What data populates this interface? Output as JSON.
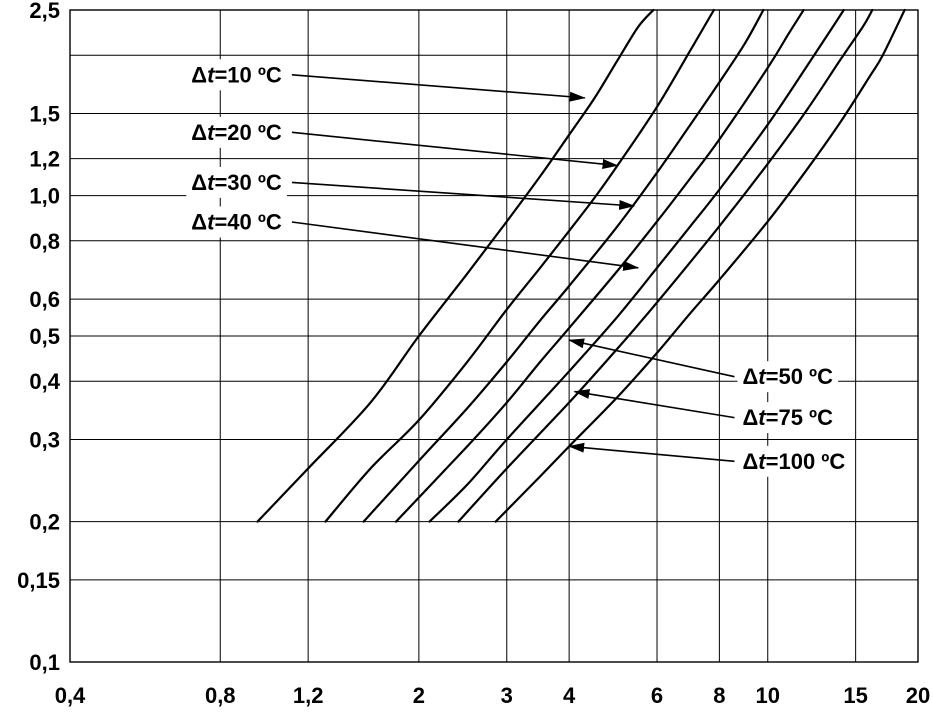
{
  "chart_data": {
    "type": "line",
    "title": "",
    "xlabel": "",
    "ylabel": "",
    "x_scale": "log",
    "y_scale": "log",
    "xlim": [
      0.4,
      20
    ],
    "ylim": [
      0.1,
      2.5
    ],
    "grid": true,
    "legend": "none",
    "x_ticks": [
      {
        "value": 0.4,
        "label": "0,4"
      },
      {
        "value": 0.8,
        "label": "0,8"
      },
      {
        "value": 1.2,
        "label": "1,2"
      },
      {
        "value": 2,
        "label": "2"
      },
      {
        "value": 3,
        "label": "3"
      },
      {
        "value": 4,
        "label": "4"
      },
      {
        "value": 6,
        "label": "6"
      },
      {
        "value": 8,
        "label": "8"
      },
      {
        "value": 10,
        "label": "10"
      },
      {
        "value": 15,
        "label": "15"
      },
      {
        "value": 20,
        "label": "20"
      }
    ],
    "y_ticks": [
      {
        "value": 0.1,
        "label": "0,1"
      },
      {
        "value": 0.15,
        "label": "0,15"
      },
      {
        "value": 0.2,
        "label": "0,2"
      },
      {
        "value": 0.3,
        "label": "0,3"
      },
      {
        "value": 0.4,
        "label": "0,4"
      },
      {
        "value": 0.5,
        "label": "0,5"
      },
      {
        "value": 0.6,
        "label": "0,6"
      },
      {
        "value": 0.8,
        "label": "0,8"
      },
      {
        "value": 1.0,
        "label": "1,0"
      },
      {
        "value": 1.2,
        "label": "1,2"
      },
      {
        "value": 1.5,
        "label": "1,5"
      },
      {
        "value": 2.0,
        "label": ""
      },
      {
        "value": 2.5,
        "label": "2,5"
      }
    ],
    "series": [
      {
        "points": [
          [
            0.95,
            0.2
          ],
          [
            1.2,
            0.26
          ],
          [
            1.6,
            0.36
          ],
          [
            2.0,
            0.5
          ],
          [
            2.5,
            0.68
          ],
          [
            3.0,
            0.88
          ],
          [
            3.5,
            1.1
          ],
          [
            4.0,
            1.35
          ],
          [
            4.5,
            1.62
          ],
          [
            5.0,
            1.95
          ],
          [
            5.5,
            2.3
          ],
          [
            5.9,
            2.5
          ]
        ]
      },
      {
        "points": [
          [
            1.3,
            0.2
          ],
          [
            1.6,
            0.26
          ],
          [
            2.0,
            0.33
          ],
          [
            2.5,
            0.44
          ],
          [
            3.0,
            0.57
          ],
          [
            3.5,
            0.7
          ],
          [
            4.0,
            0.84
          ],
          [
            4.5,
            0.99
          ],
          [
            5.0,
            1.16
          ],
          [
            6.0,
            1.55
          ],
          [
            7.0,
            2.05
          ],
          [
            7.8,
            2.5
          ]
        ]
      },
      {
        "points": [
          [
            1.55,
            0.2
          ],
          [
            2.0,
            0.27
          ],
          [
            2.5,
            0.35
          ],
          [
            3.0,
            0.44
          ],
          [
            3.5,
            0.54
          ],
          [
            4.0,
            0.64
          ],
          [
            5.0,
            0.86
          ],
          [
            6.0,
            1.12
          ],
          [
            7.0,
            1.42
          ],
          [
            8.0,
            1.75
          ],
          [
            9.0,
            2.12
          ],
          [
            9.8,
            2.5
          ]
        ]
      },
      {
        "points": [
          [
            1.8,
            0.2
          ],
          [
            2.5,
            0.29
          ],
          [
            3.0,
            0.36
          ],
          [
            3.5,
            0.44
          ],
          [
            4.0,
            0.52
          ],
          [
            5.0,
            0.69
          ],
          [
            6.0,
            0.88
          ],
          [
            7.0,
            1.09
          ],
          [
            8.0,
            1.32
          ],
          [
            10.0,
            1.88
          ],
          [
            11.0,
            2.22
          ],
          [
            11.8,
            2.5
          ]
        ]
      },
      {
        "points": [
          [
            2.1,
            0.2
          ],
          [
            2.5,
            0.24
          ],
          [
            3.0,
            0.3
          ],
          [
            4.0,
            0.42
          ],
          [
            5.0,
            0.55
          ],
          [
            6.0,
            0.7
          ],
          [
            7.0,
            0.86
          ],
          [
            8.0,
            1.03
          ],
          [
            10.0,
            1.42
          ],
          [
            12.0,
            1.9
          ],
          [
            13.5,
            2.3
          ],
          [
            14.2,
            2.5
          ]
        ]
      },
      {
        "points": [
          [
            2.4,
            0.2
          ],
          [
            3.0,
            0.26
          ],
          [
            4.0,
            0.36
          ],
          [
            5.0,
            0.47
          ],
          [
            6.0,
            0.59
          ],
          [
            8.0,
            0.86
          ],
          [
            10.0,
            1.17
          ],
          [
            12.0,
            1.53
          ],
          [
            14.0,
            1.96
          ],
          [
            15.5,
            2.3
          ],
          [
            16.2,
            2.5
          ]
        ]
      },
      {
        "points": [
          [
            2.85,
            0.2
          ],
          [
            3.5,
            0.25
          ],
          [
            4.0,
            0.29
          ],
          [
            5.0,
            0.37
          ],
          [
            6.0,
            0.46
          ],
          [
            7.0,
            0.56
          ],
          [
            8.0,
            0.66
          ],
          [
            10.0,
            0.88
          ],
          [
            12.0,
            1.14
          ],
          [
            14.0,
            1.44
          ],
          [
            16.0,
            1.8
          ],
          [
            17.0,
            2.0
          ],
          [
            18.8,
            2.5
          ]
        ]
      }
    ],
    "annotations": [
      {
        "text": "Δt=10 ºC",
        "prefix": "Δ",
        "var": "t",
        "rest": "=10 ºC",
        "x": 0.7,
        "y": 1.82,
        "side": "left",
        "target": [
          4.3,
          1.62
        ]
      },
      {
        "text": "Δt=20 ºC",
        "prefix": "Δ",
        "var": "t",
        "rest": "=20 ºC",
        "x": 0.7,
        "y": 1.37,
        "side": "left",
        "target": [
          5.0,
          1.16
        ]
      },
      {
        "text": "Δt=30 ºC",
        "prefix": "Δ",
        "var": "t",
        "rest": "=30 ºC",
        "x": 0.7,
        "y": 1.07,
        "side": "left",
        "target": [
          5.4,
          0.95
        ]
      },
      {
        "text": "Δt=40 ºC",
        "prefix": "Δ",
        "var": "t",
        "rest": "=40 ºC",
        "x": 0.7,
        "y": 0.88,
        "side": "left",
        "target": [
          5.5,
          0.7
        ]
      },
      {
        "text": "Δt=50 ºC",
        "prefix": "Δ",
        "var": "t",
        "rest": "=50 ºC",
        "x": 8.9,
        "y": 0.41,
        "side": "right",
        "target": [
          4.0,
          0.49
        ]
      },
      {
        "text": "Δt=75 ºC",
        "prefix": "Δ",
        "var": "t",
        "rest": "=75 ºC",
        "x": 8.9,
        "y": 0.335,
        "side": "right",
        "target": [
          4.1,
          0.38
        ]
      },
      {
        "text": "Δt=100 ºC",
        "prefix": "Δ",
        "var": "t",
        "rest": "=100 ºC",
        "x": 8.9,
        "y": 0.27,
        "side": "right",
        "target": [
          4.0,
          0.29
        ]
      }
    ]
  }
}
